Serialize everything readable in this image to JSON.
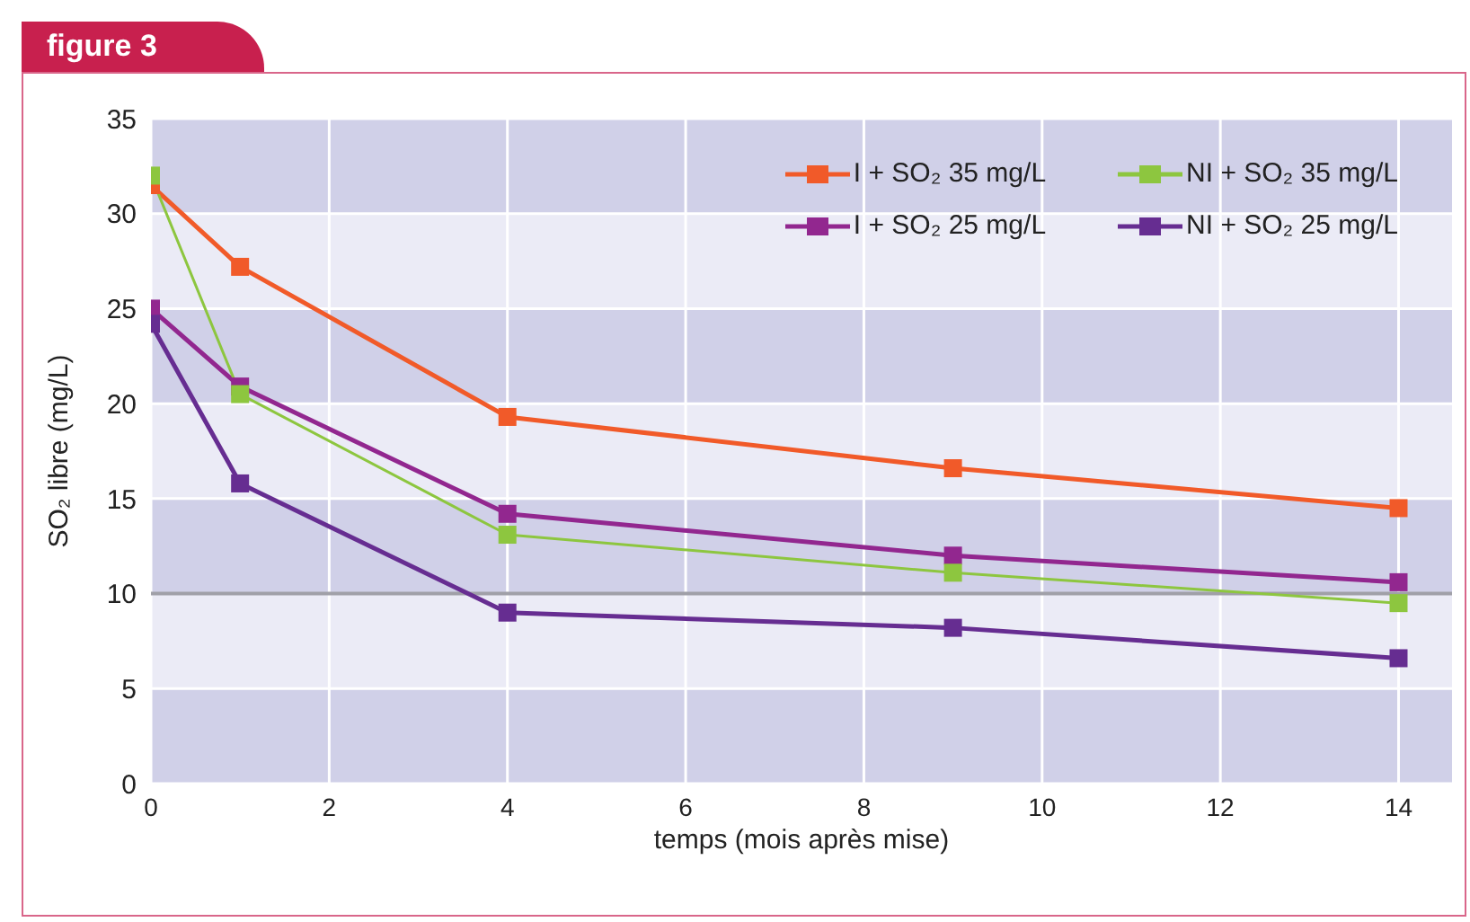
{
  "chart_data": {
    "type": "line",
    "title": "figure 3",
    "xlabel": "temps (mois après mise)",
    "ylabel": "SO₂ libre (mg/L)",
    "x": [
      0,
      1,
      4,
      9,
      14
    ],
    "series": [
      {
        "name": "I + SO₂ 35 mg/L",
        "color": "#f15a29",
        "values": [
          31.5,
          27.2,
          19.3,
          16.6,
          14.5
        ]
      },
      {
        "name": "NI + SO₂ 35 mg/L",
        "color": "#8dc63f",
        "values": [
          32,
          20.5,
          13.1,
          11.1,
          9.5
        ]
      },
      {
        "name": "I + SO₂ 25 mg/L",
        "color": "#92278f",
        "values": [
          25,
          20.9,
          14.2,
          12,
          10.6
        ]
      },
      {
        "name": "NI + SO₂ 25 mg/L",
        "color": "#662d91",
        "values": [
          24.2,
          15.8,
          9,
          8.2,
          6.6
        ]
      }
    ],
    "xlim": [
      0,
      14.6
    ],
    "xticks": [
      0,
      2,
      4,
      6,
      8,
      10,
      12,
      14
    ],
    "ylim": [
      0,
      35
    ],
    "yticks": [
      0,
      5,
      10,
      15,
      20,
      25,
      30,
      35
    ],
    "ref_lines": [
      {
        "axis": "y",
        "value": 10,
        "label": null,
        "color": "#a0a0a8"
      }
    ],
    "grid": true,
    "legend": "top right",
    "marker": "square",
    "line_style": "solid"
  }
}
